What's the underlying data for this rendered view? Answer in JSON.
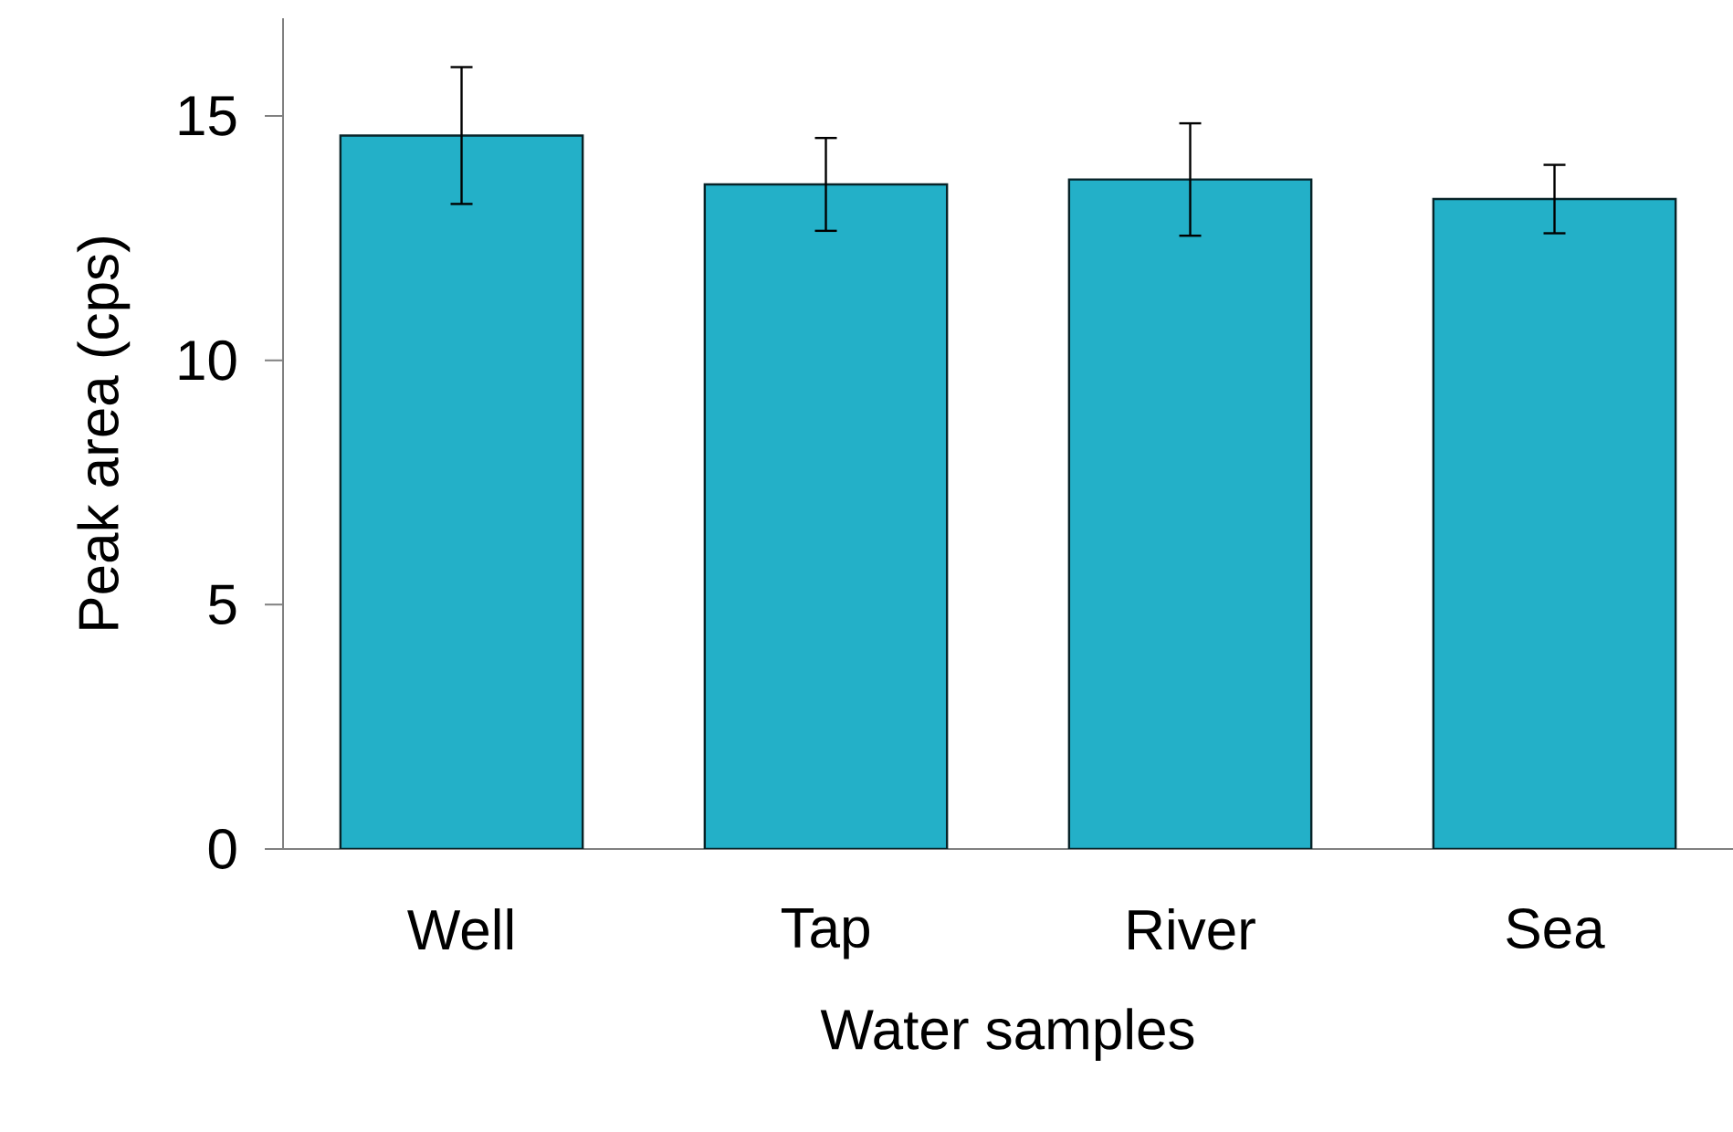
{
  "chart_data": {
    "type": "bar",
    "xlabel": "Water samples",
    "ylabel": "Peak area (cps)",
    "categories": [
      "Well",
      "Tap",
      "River",
      "Sea"
    ],
    "values": [
      14.6,
      13.6,
      13.7,
      13.3
    ],
    "errors": [
      1.4,
      0.95,
      1.15,
      0.7
    ],
    "color": "#23b0c8",
    "ylim": [
      0,
      17
    ],
    "yticks": [
      0,
      5,
      10,
      15
    ],
    "grid": false
  }
}
